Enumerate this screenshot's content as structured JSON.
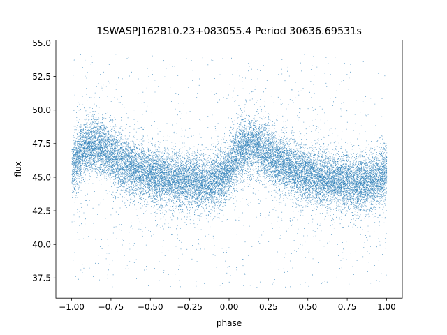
{
  "chart_data": {
    "type": "scatter",
    "title": "1SWASPJ162810.23+083055.4 Period 30636.69531s",
    "xlabel": "phase",
    "ylabel": "flux",
    "xlim": [
      -1.1,
      1.1
    ],
    "ylim": [
      36.0,
      55.2
    ],
    "grid": false,
    "legend": "none",
    "x_ticks": [
      -1.0,
      -0.75,
      -0.5,
      -0.25,
      0.0,
      0.25,
      0.5,
      0.75,
      1.0
    ],
    "x_tick_labels": [
      "−1.00",
      "−0.75",
      "−0.50",
      "−0.25",
      "0.00",
      "0.25",
      "0.50",
      "0.75",
      "1.00"
    ],
    "y_ticks": [
      37.5,
      40.0,
      42.5,
      45.0,
      47.5,
      50.0,
      52.5,
      55.0
    ],
    "y_tick_labels": [
      "37.5",
      "40.0",
      "42.5",
      "45.0",
      "47.5",
      "50.0",
      "52.5",
      "55.0"
    ],
    "series": [
      {
        "color": "#1f77b4",
        "marker": "point",
        "x": [
          -1.0,
          -0.95,
          -0.9,
          -0.85,
          -0.8,
          -0.75,
          -0.7,
          -0.65,
          -0.6,
          -0.55,
          -0.5,
          -0.45,
          -0.4,
          -0.35,
          -0.3,
          -0.25,
          -0.2,
          -0.15,
          -0.1,
          -0.05,
          0.0,
          0.05,
          0.1,
          0.15,
          0.2,
          0.25,
          0.3,
          0.35,
          0.4,
          0.45,
          0.5,
          0.55,
          0.6,
          0.65,
          0.7,
          0.75,
          0.8,
          0.85,
          0.9,
          0.95,
          1.0
        ],
        "y": [
          45.5,
          46.8,
          47.3,
          47.4,
          47.1,
          46.7,
          46.3,
          45.9,
          45.6,
          45.4,
          45.2,
          45.0,
          44.9,
          44.8,
          44.7,
          44.7,
          44.6,
          44.6,
          44.7,
          44.9,
          45.5,
          46.8,
          47.3,
          47.4,
          47.1,
          46.7,
          46.3,
          45.9,
          45.6,
          45.4,
          45.2,
          45.0,
          44.9,
          44.8,
          44.7,
          44.7,
          44.6,
          44.6,
          44.7,
          44.9,
          45.5
        ],
        "scatter_sd": 1.0,
        "point_count": 24000,
        "outlier_range": [
          36.8,
          54.3
        ]
      }
    ]
  }
}
